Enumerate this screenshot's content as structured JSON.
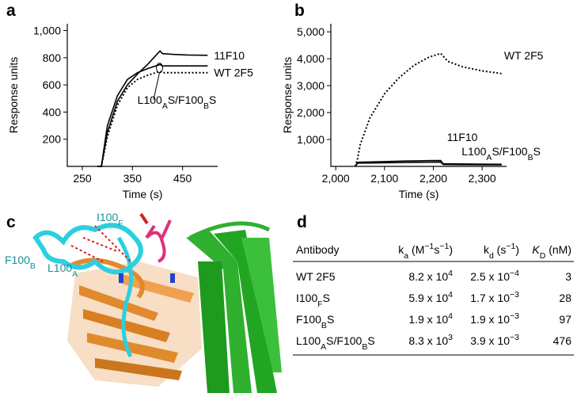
{
  "chart_data": [
    {
      "type": "line",
      "panel": "a",
      "xlabel": "Time (s)",
      "ylabel": "Response units",
      "xlim": [
        220,
        520
      ],
      "xticks": [
        250,
        350,
        450
      ],
      "ylim": [
        0,
        1050
      ],
      "yticks": [
        200,
        400,
        600,
        800,
        {
          "value": 1000,
          "label": "1,000"
        }
      ],
      "x": [
        280,
        288,
        300,
        320,
        340,
        360,
        380,
        405,
        410,
        430,
        460,
        500
      ],
      "series": [
        {
          "name": "11F10",
          "color": "#000000",
          "style": "solid",
          "values": [
            0,
            0,
            250,
            480,
            600,
            680,
            750,
            850,
            830,
            825,
            820,
            818
          ]
        },
        {
          "name": [
            "L100",
            {
              "sub": "A"
            },
            "S/F100",
            {
              "sub": "B"
            },
            "S"
          ],
          "color": "#000000",
          "style": "solid",
          "values": [
            0,
            0,
            300,
            520,
            640,
            690,
            720,
            750,
            740,
            740,
            740,
            740
          ]
        },
        {
          "name": "WT 2F5",
          "color": "#000000",
          "style": "dotted",
          "values": [
            0,
            0,
            220,
            450,
            580,
            640,
            670,
            700,
            690,
            690,
            690,
            690
          ]
        }
      ]
    },
    {
      "type": "line",
      "panel": "b",
      "xlabel": "Time (s)",
      "ylabel": "Response units",
      "xlim": [
        1990,
        2350
      ],
      "xticks": [
        {
          "value": 2000,
          "label": "2,000"
        },
        {
          "value": 2100,
          "label": "2,100"
        },
        {
          "value": 2200,
          "label": "2,200"
        },
        {
          "value": 2300,
          "label": "2,300"
        }
      ],
      "ylim": [
        0,
        5300
      ],
      "yticks": [
        {
          "value": 1000,
          "label": "1,000"
        },
        {
          "value": 2000,
          "label": "2,000"
        },
        {
          "value": 3000,
          "label": "3,000"
        },
        {
          "value": 4000,
          "label": "4,000"
        },
        {
          "value": 5000,
          "label": "5,000"
        }
      ],
      "x": [
        2040,
        2045,
        2050,
        2070,
        2100,
        2130,
        2160,
        2190,
        2215,
        2220,
        2230,
        2260,
        2300,
        2340
      ],
      "series": [
        {
          "name": "WT 2F5",
          "color": "#000000",
          "style": "dotted",
          "values": [
            0,
            300,
            800,
            1800,
            2700,
            3300,
            3750,
            4050,
            4200,
            4100,
            3900,
            3700,
            3550,
            3450
          ]
        },
        {
          "name": "11F10",
          "color": "#000000",
          "style": "solid",
          "values": [
            0,
            150,
            155,
            165,
            180,
            195,
            205,
            215,
            220,
            100,
            95,
            90,
            85,
            80
          ]
        },
        {
          "name": [
            "L100",
            {
              "sub": "A"
            },
            "S/F100",
            {
              "sub": "B"
            },
            "S"
          ],
          "color": "#000000",
          "style": "solid",
          "values": [
            0,
            120,
            122,
            128,
            135,
            142,
            150,
            155,
            160,
            70,
            68,
            65,
            62,
            60
          ]
        }
      ]
    }
  ],
  "structure": {
    "panel": "c",
    "labels": [
      [
        "I100",
        {
          "sub": "F"
        }
      ],
      [
        "F100",
        {
          "sub": "B"
        }
      ],
      [
        "L100",
        {
          "sub": "A"
        }
      ]
    ]
  },
  "table": {
    "panel": "d",
    "header": [
      [
        "Antibody"
      ],
      [
        "k",
        {
          "sub": "a"
        },
        " (M",
        {
          "sup": "−1"
        },
        "s",
        {
          "sup": "−1"
        },
        ")"
      ],
      [
        "k",
        {
          "sub": "d"
        },
        " (s",
        {
          "sup": "−1"
        },
        ")"
      ],
      [
        {
          "it": "K"
        },
        {
          "sub": "D"
        },
        " (nM)"
      ]
    ],
    "rows": [
      [
        [
          "WT 2F5"
        ],
        [
          "8.2 x 10",
          {
            "sup": "4"
          }
        ],
        [
          "2.5 x 10",
          {
            "sup": "−4"
          }
        ],
        3
      ],
      [
        [
          "I100",
          {
            "sub": "F"
          },
          "S"
        ],
        [
          "5.9 x 10",
          {
            "sup": "4"
          }
        ],
        [
          "1.7 x 10",
          {
            "sup": "−3"
          }
        ],
        28
      ],
      [
        [
          "F100",
          {
            "sub": "B"
          },
          "S"
        ],
        [
          "1.9 x 10",
          {
            "sup": "4"
          }
        ],
        [
          "1.9 x 10",
          {
            "sup": "−3"
          }
        ],
        97
      ],
      [
        [
          "L100",
          {
            "sub": "A"
          },
          "S/F100",
          {
            "sub": "B"
          },
          "S"
        ],
        [
          "8.3 x 10",
          {
            "sup": "3"
          }
        ],
        [
          "3.9 x 10",
          {
            "sup": "−3"
          }
        ],
        476
      ]
    ]
  }
}
